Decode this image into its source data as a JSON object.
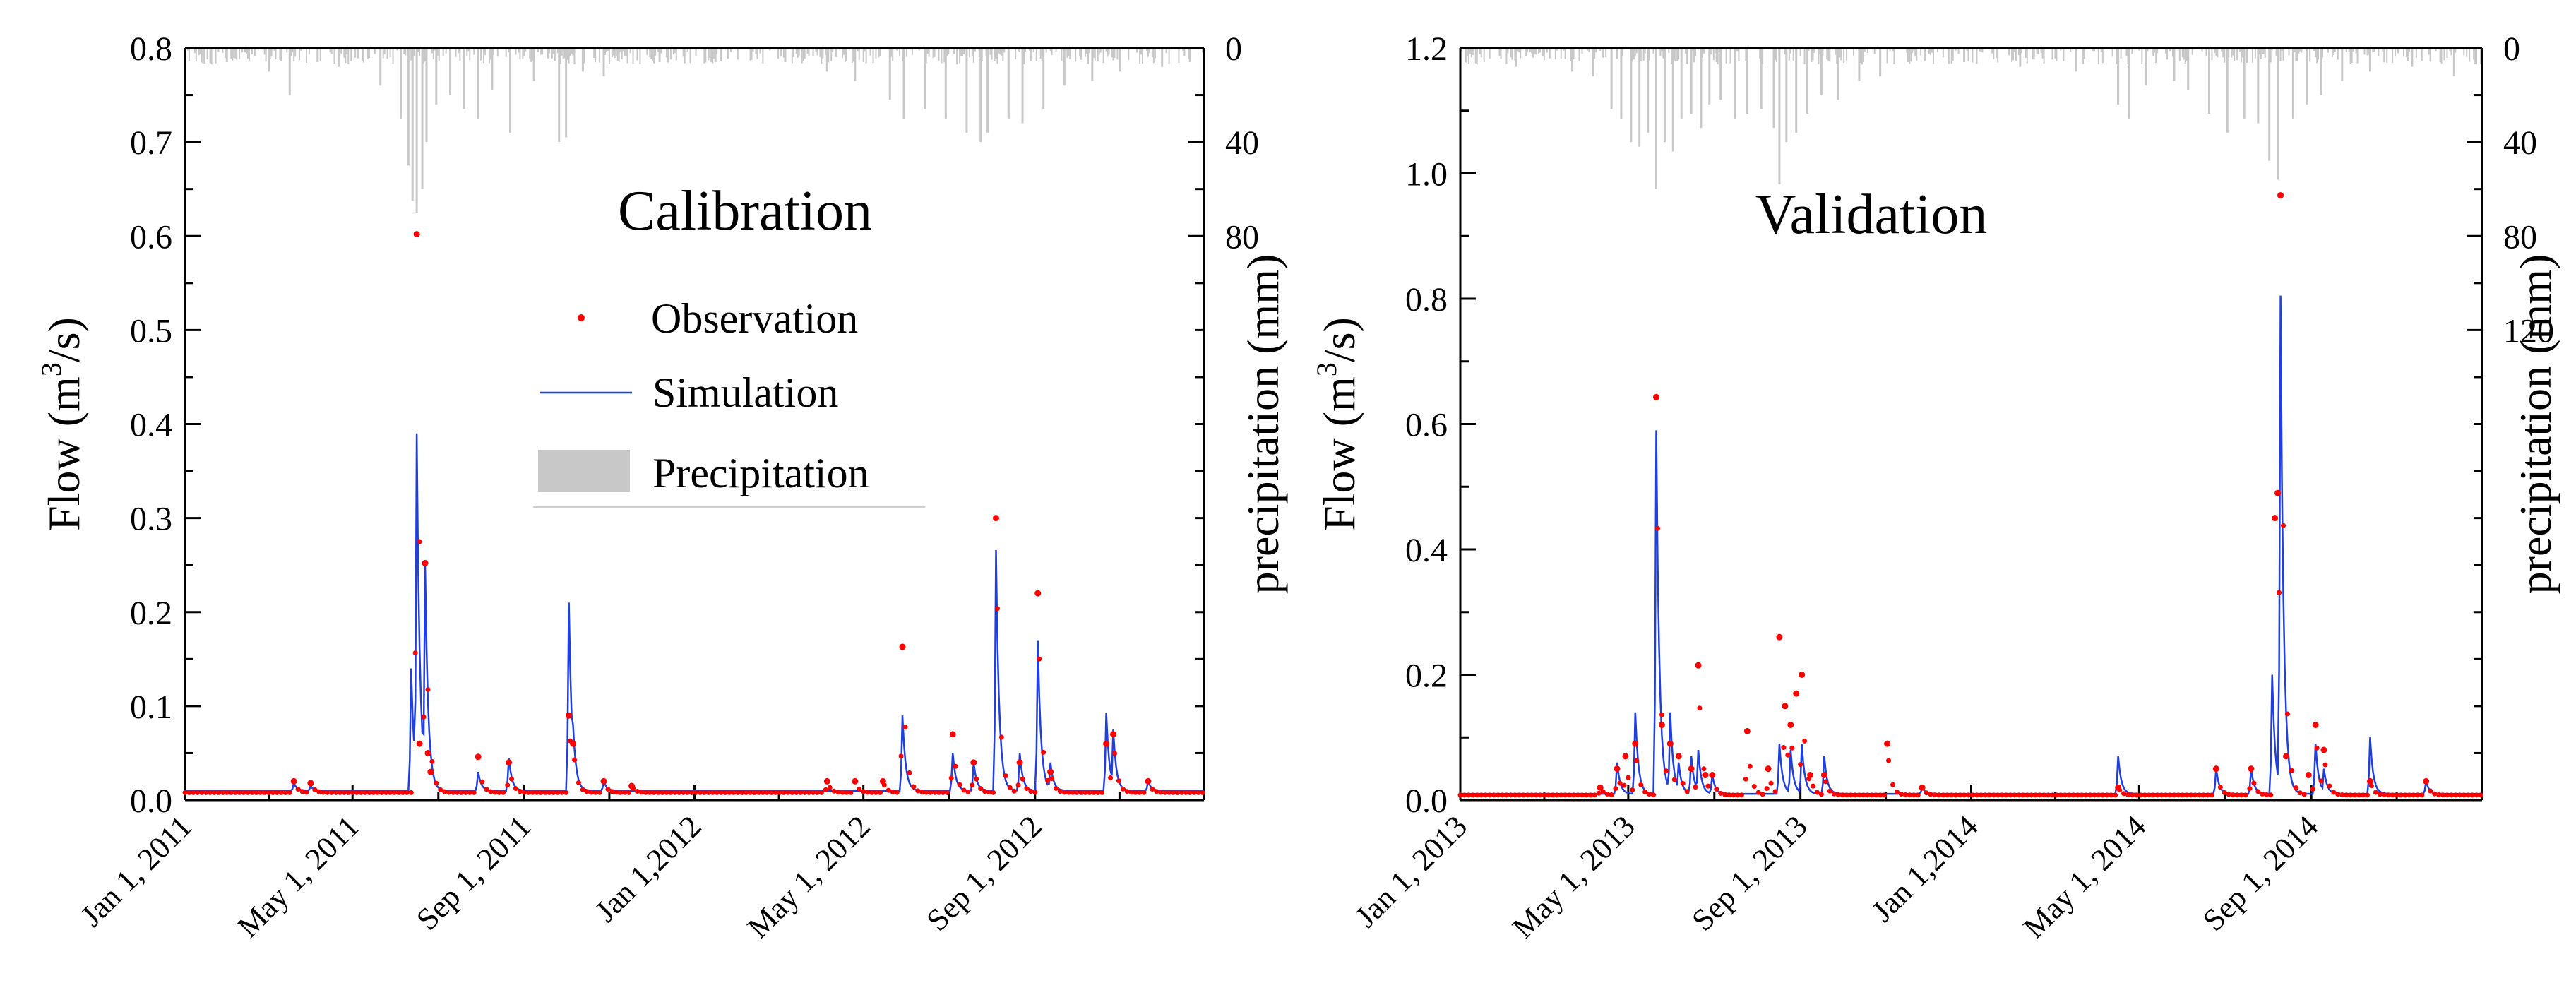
{
  "colors": {
    "observation": "#ff0000",
    "simulation": "#1f3fe0",
    "precipitation": "#c8c8c8",
    "axis": "#000000"
  },
  "chart_data": [
    {
      "type": "line",
      "title": "Calibration",
      "ylabel": "Flow (m³/s)",
      "ylabel_main": "Flow (m",
      "ylabel_sup": "3",
      "ylabel_end": "/s)",
      "y2label": "precipitation (mm)",
      "ylim": [
        0,
        0.8
      ],
      "yticks": [
        0.0,
        0.1,
        0.2,
        0.3,
        0.4,
        0.5,
        0.6,
        0.7,
        0.8
      ],
      "ytick_labels": [
        "0.0",
        "0.1",
        "0.2",
        "0.3",
        "0.4",
        "0.5",
        "0.6",
        "0.7",
        "0.8"
      ],
      "y2lim": [
        0,
        320
      ],
      "y2_inverted": true,
      "y2ticks": [
        0,
        40,
        80
      ],
      "y2tick_labels": [
        "0",
        "40",
        "80"
      ],
      "xlim_days": [
        0,
        730
      ],
      "xticks_days": [
        0,
        120,
        243,
        365,
        486,
        609
      ],
      "xtick_labels": [
        "Jan 1, 2011",
        "May 1, 2011",
        "Sep 1, 2011",
        "Jan 1,2012",
        "May 1, 2012",
        "Sep 1, 2012"
      ],
      "legend": {
        "position": "upper-center",
        "entries": [
          "Observation",
          "Simulation",
          "Precipitation"
        ]
      },
      "baseflow": {
        "obs": 0.008,
        "sim": 0.01
      },
      "observation_peaks": [
        [
          78,
          0.02
        ],
        [
          90,
          0.018
        ],
        [
          166,
          0.602
        ],
        [
          168,
          0.06
        ],
        [
          172,
          0.252
        ],
        [
          174,
          0.05
        ],
        [
          176,
          0.03
        ],
        [
          210,
          0.046
        ],
        [
          232,
          0.04
        ],
        [
          275,
          0.09
        ],
        [
          278,
          0.06
        ],
        [
          300,
          0.02
        ],
        [
          320,
          0.015
        ],
        [
          460,
          0.02
        ],
        [
          480,
          0.02
        ],
        [
          500,
          0.02
        ],
        [
          514,
          0.163
        ],
        [
          550,
          0.07
        ],
        [
          565,
          0.04
        ],
        [
          581,
          0.3
        ],
        [
          598,
          0.04
        ],
        [
          611,
          0.22
        ],
        [
          620,
          0.03
        ],
        [
          660,
          0.06
        ],
        [
          665,
          0.07
        ],
        [
          690,
          0.02
        ]
      ],
      "simulation_peaks": [
        [
          78,
          0.018
        ],
        [
          90,
          0.015
        ],
        [
          162,
          0.14
        ],
        [
          166,
          0.39
        ],
        [
          172,
          0.25
        ],
        [
          176,
          0.05
        ],
        [
          210,
          0.03
        ],
        [
          232,
          0.045
        ],
        [
          275,
          0.21
        ],
        [
          278,
          0.08
        ],
        [
          300,
          0.02
        ],
        [
          514,
          0.09
        ],
        [
          550,
          0.05
        ],
        [
          565,
          0.04
        ],
        [
          581,
          0.266
        ],
        [
          598,
          0.05
        ],
        [
          611,
          0.17
        ],
        [
          620,
          0.04
        ],
        [
          660,
          0.093
        ],
        [
          665,
          0.075
        ],
        [
          690,
          0.02
        ]
      ],
      "precipitation_events": [
        [
          30,
          6
        ],
        [
          60,
          10
        ],
        [
          75,
          20
        ],
        [
          95,
          6
        ],
        [
          110,
          8
        ],
        [
          140,
          16
        ],
        [
          155,
          30
        ],
        [
          160,
          50
        ],
        [
          163,
          65
        ],
        [
          166,
          70
        ],
        [
          170,
          60
        ],
        [
          173,
          40
        ],
        [
          180,
          24
        ],
        [
          190,
          20
        ],
        [
          200,
          26
        ],
        [
          210,
          30
        ],
        [
          220,
          18
        ],
        [
          233,
          36
        ],
        [
          250,
          14
        ],
        [
          268,
          40
        ],
        [
          273,
          38
        ],
        [
          285,
          10
        ],
        [
          300,
          12
        ],
        [
          340,
          6
        ],
        [
          380,
          6
        ],
        [
          430,
          6
        ],
        [
          460,
          10
        ],
        [
          480,
          14
        ],
        [
          505,
          22
        ],
        [
          515,
          30
        ],
        [
          530,
          26
        ],
        [
          545,
          30
        ],
        [
          560,
          36
        ],
        [
          570,
          40
        ],
        [
          575,
          36
        ],
        [
          590,
          30
        ],
        [
          600,
          32
        ],
        [
          615,
          26
        ],
        [
          630,
          16
        ],
        [
          650,
          14
        ],
        [
          670,
          10
        ],
        [
          700,
          8
        ],
        [
          720,
          6
        ]
      ]
    },
    {
      "type": "line",
      "title": "Validation",
      "ylabel": "Flow (m³/s)",
      "ylabel_main": "Flow (m",
      "ylabel_sup": "3",
      "ylabel_end": "/s)",
      "y2label": "precipitation (mm)",
      "ylim": [
        0,
        1.2
      ],
      "yticks": [
        0.0,
        0.2,
        0.4,
        0.6,
        0.8,
        1.0,
        1.2
      ],
      "ytick_labels": [
        "0.0",
        "0.2",
        "0.4",
        "0.6",
        "0.8",
        "1.0",
        "1.2"
      ],
      "y2lim": [
        0,
        320
      ],
      "y2_inverted": true,
      "y2ticks": [
        0,
        40,
        80,
        120
      ],
      "y2tick_labels": [
        "0",
        "40",
        "80",
        "120"
      ],
      "xlim_days": [
        0,
        730
      ],
      "xticks_days": [
        0,
        120,
        243,
        365,
        485,
        608
      ],
      "xtick_labels": [
        "Jan 1, 2013",
        "May 1, 2013",
        "Sep 1, 2013",
        "Jan 1,2014",
        "May 1, 2014",
        "Sep 1, 2014"
      ],
      "baseflow": {
        "obs": 0.008,
        "sim": 0.01
      },
      "observation_peaks": [
        [
          100,
          0.02
        ],
        [
          112,
          0.05
        ],
        [
          118,
          0.07
        ],
        [
          125,
          0.09
        ],
        [
          140,
          0.643
        ],
        [
          144,
          0.12
        ],
        [
          150,
          0.09
        ],
        [
          156,
          0.07
        ],
        [
          165,
          0.05
        ],
        [
          170,
          0.215
        ],
        [
          175,
          0.04
        ],
        [
          180,
          0.04
        ],
        [
          205,
          0.11
        ],
        [
          220,
          0.05
        ],
        [
          228,
          0.26
        ],
        [
          232,
          0.15
        ],
        [
          236,
          0.12
        ],
        [
          240,
          0.17
        ],
        [
          244,
          0.2
        ],
        [
          250,
          0.04
        ],
        [
          260,
          0.04
        ],
        [
          305,
          0.09
        ],
        [
          330,
          0.02
        ],
        [
          470,
          0.02
        ],
        [
          540,
          0.05
        ],
        [
          565,
          0.05
        ],
        [
          582,
          0.45
        ],
        [
          584,
          0.49
        ],
        [
          586,
          0.965
        ],
        [
          590,
          0.07
        ],
        [
          606,
          0.04
        ],
        [
          611,
          0.12
        ],
        [
          617,
          0.08
        ],
        [
          650,
          0.03
        ],
        [
          690,
          0.03
        ]
      ],
      "simulation_peaks": [
        [
          112,
          0.06
        ],
        [
          125,
          0.14
        ],
        [
          140,
          0.59
        ],
        [
          144,
          0.1
        ],
        [
          150,
          0.14
        ],
        [
          156,
          0.06
        ],
        [
          165,
          0.07
        ],
        [
          170,
          0.08
        ],
        [
          180,
          0.04
        ],
        [
          228,
          0.09
        ],
        [
          236,
          0.08
        ],
        [
          244,
          0.09
        ],
        [
          260,
          0.07
        ],
        [
          330,
          0.02
        ],
        [
          470,
          0.07
        ],
        [
          540,
          0.05
        ],
        [
          565,
          0.05
        ],
        [
          580,
          0.2
        ],
        [
          586,
          0.805
        ],
        [
          590,
          0.07
        ],
        [
          611,
          0.09
        ],
        [
          617,
          0.05
        ],
        [
          650,
          0.1
        ],
        [
          690,
          0.03
        ]
      ],
      "precipitation_events": [
        [
          40,
          8
        ],
        [
          80,
          10
        ],
        [
          95,
          12
        ],
        [
          108,
          26
        ],
        [
          115,
          30
        ],
        [
          122,
          40
        ],
        [
          128,
          42
        ],
        [
          134,
          36
        ],
        [
          140,
          60
        ],
        [
          146,
          40
        ],
        [
          152,
          44
        ],
        [
          158,
          30
        ],
        [
          165,
          28
        ],
        [
          172,
          34
        ],
        [
          178,
          24
        ],
        [
          186,
          22
        ],
        [
          196,
          30
        ],
        [
          205,
          28
        ],
        [
          215,
          26
        ],
        [
          224,
          34
        ],
        [
          228,
          58
        ],
        [
          233,
          40
        ],
        [
          240,
          36
        ],
        [
          248,
          28
        ],
        [
          258,
          20
        ],
        [
          270,
          22
        ],
        [
          285,
          14
        ],
        [
          300,
          12
        ],
        [
          320,
          6
        ],
        [
          360,
          6
        ],
        [
          400,
          8
        ],
        [
          440,
          10
        ],
        [
          470,
          24
        ],
        [
          478,
          30
        ],
        [
          490,
          16
        ],
        [
          510,
          14
        ],
        [
          520,
          18
        ],
        [
          535,
          28
        ],
        [
          548,
          36
        ],
        [
          560,
          30
        ],
        [
          570,
          32
        ],
        [
          578,
          48
        ],
        [
          584,
          56
        ],
        [
          595,
          30
        ],
        [
          605,
          24
        ],
        [
          615,
          20
        ],
        [
          630,
          14
        ],
        [
          650,
          10
        ],
        [
          680,
          8
        ],
        [
          710,
          12
        ]
      ]
    }
  ]
}
